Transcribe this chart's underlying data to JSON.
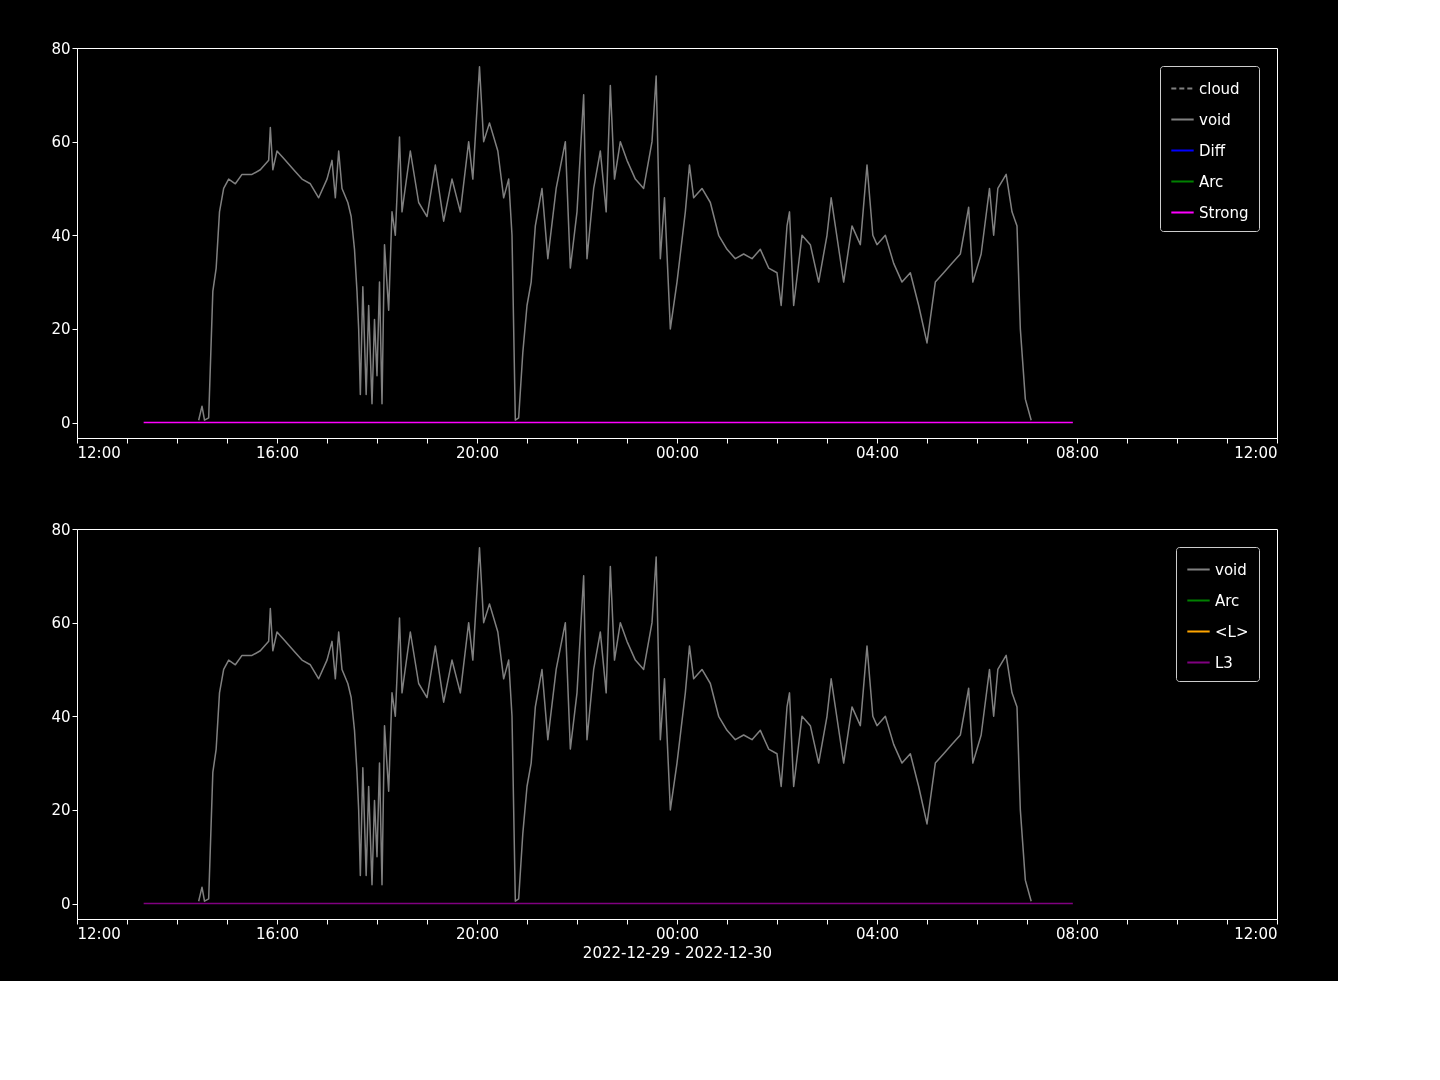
{
  "chart_data": [
    {
      "type": "line",
      "xlim": [
        "2022-12-29T12:00",
        "2022-12-30T12:00"
      ],
      "ylim": [
        -3.3,
        80
      ],
      "yticks": [
        0,
        20,
        40,
        60,
        80
      ],
      "xticks": [
        {
          "value": "2022-12-29T12:00",
          "label": "12:00"
        },
        {
          "value": "2022-12-29T13:00",
          "label": null
        },
        {
          "value": "2022-12-29T14:00",
          "label": null
        },
        {
          "value": "2022-12-29T15:00",
          "label": null
        },
        {
          "value": "2022-12-29T16:00",
          "label": "16:00"
        },
        {
          "value": "2022-12-29T17:00",
          "label": null
        },
        {
          "value": "2022-12-29T18:00",
          "label": null
        },
        {
          "value": "2022-12-29T19:00",
          "label": null
        },
        {
          "value": "2022-12-29T20:00",
          "label": "20:00"
        },
        {
          "value": "2022-12-29T21:00",
          "label": null
        },
        {
          "value": "2022-12-29T22:00",
          "label": null
        },
        {
          "value": "2022-12-29T23:00",
          "label": null
        },
        {
          "value": "2022-12-30T00:00",
          "label": "00:00"
        },
        {
          "value": "2022-12-30T01:00",
          "label": null
        },
        {
          "value": "2022-12-30T02:00",
          "label": null
        },
        {
          "value": "2022-12-30T03:00",
          "label": null
        },
        {
          "value": "2022-12-30T04:00",
          "label": "04:00"
        },
        {
          "value": "2022-12-30T05:00",
          "label": null
        },
        {
          "value": "2022-12-30T06:00",
          "label": null
        },
        {
          "value": "2022-12-30T07:00",
          "label": null
        },
        {
          "value": "2022-12-30T08:00",
          "label": "08:00"
        },
        {
          "value": "2022-12-30T09:00",
          "label": null
        },
        {
          "value": "2022-12-30T10:00",
          "label": null
        },
        {
          "value": "2022-12-30T11:00",
          "label": null
        },
        {
          "value": "2022-12-30T12:00",
          "label": "12:00"
        }
      ],
      "legend": "top right",
      "grid": false,
      "series": [
        {
          "name": "cloud",
          "color": "#808080",
          "line_style": "dashed"
        },
        {
          "name": "void",
          "color": "#808080",
          "line_style": "solid",
          "x": [
            "2022-12-29T14:26",
            "2022-12-29T14:30",
            "2022-12-29T14:33",
            "2022-12-29T14:38",
            "2022-12-29T14:43",
            "2022-12-29T14:47",
            "2022-12-29T14:51",
            "2022-12-29T14:56",
            "2022-12-29T15:02",
            "2022-12-29T15:10",
            "2022-12-29T15:18",
            "2022-12-29T15:30",
            "2022-12-29T15:40",
            "2022-12-29T15:50",
            "2022-12-29T15:52",
            "2022-12-29T15:55",
            "2022-12-29T16:00",
            "2022-12-29T16:10",
            "2022-12-29T16:20",
            "2022-12-29T16:30",
            "2022-12-29T16:40",
            "2022-12-29T16:50",
            "2022-12-29T17:00",
            "2022-12-29T17:06",
            "2022-12-29T17:10",
            "2022-12-29T17:14",
            "2022-12-29T17:18",
            "2022-12-29T17:25",
            "2022-12-29T17:29",
            "2022-12-29T17:33",
            "2022-12-29T17:36",
            "2022-12-29T17:38",
            "2022-12-29T17:40",
            "2022-12-29T17:43",
            "2022-12-29T17:47",
            "2022-12-29T17:50",
            "2022-12-29T17:54",
            "2022-12-29T17:57",
            "2022-12-29T18:00",
            "2022-12-29T18:03",
            "2022-12-29T18:06",
            "2022-12-29T18:09",
            "2022-12-29T18:14",
            "2022-12-29T18:18",
            "2022-12-29T18:22",
            "2022-12-29T18:27",
            "2022-12-29T18:30",
            "2022-12-29T18:40",
            "2022-12-29T18:50",
            "2022-12-29T19:00",
            "2022-12-29T19:10",
            "2022-12-29T19:20",
            "2022-12-29T19:30",
            "2022-12-29T19:40",
            "2022-12-29T19:50",
            "2022-12-29T19:55",
            "2022-12-29T20:03",
            "2022-12-29T20:08",
            "2022-12-29T20:15",
            "2022-12-29T20:25",
            "2022-12-29T20:32",
            "2022-12-29T20:38",
            "2022-12-29T20:42",
            "2022-12-29T20:46",
            "2022-12-29T20:50",
            "2022-12-29T20:55",
            "2022-12-29T21:00",
            "2022-12-29T21:05",
            "2022-12-29T21:10",
            "2022-12-29T21:18",
            "2022-12-29T21:25",
            "2022-12-29T21:35",
            "2022-12-29T21:46",
            "2022-12-29T21:52",
            "2022-12-29T22:00",
            "2022-12-29T22:08",
            "2022-12-29T22:12",
            "2022-12-29T22:20",
            "2022-12-29T22:28",
            "2022-12-29T22:35",
            "2022-12-29T22:40",
            "2022-12-29T22:45",
            "2022-12-29T22:52",
            "2022-12-29T23:00",
            "2022-12-29T23:10",
            "2022-12-29T23:20",
            "2022-12-29T23:30",
            "2022-12-29T23:35",
            "2022-12-29T23:40",
            "2022-12-29T23:45",
            "2022-12-29T23:52",
            "2022-12-30T00:00",
            "2022-12-30T00:10",
            "2022-12-30T00:15",
            "2022-12-30T00:20",
            "2022-12-30T00:30",
            "2022-12-30T00:40",
            "2022-12-30T00:50",
            "2022-12-30T01:00",
            "2022-12-30T01:10",
            "2022-12-30T01:20",
            "2022-12-30T01:30",
            "2022-12-30T01:40",
            "2022-12-30T01:50",
            "2022-12-30T02:00",
            "2022-12-30T02:05",
            "2022-12-30T02:12",
            "2022-12-30T02:15",
            "2022-12-30T02:20",
            "2022-12-30T02:30",
            "2022-12-30T02:40",
            "2022-12-30T02:50",
            "2022-12-30T03:00",
            "2022-12-30T03:05",
            "2022-12-30T03:15",
            "2022-12-30T03:20",
            "2022-12-30T03:30",
            "2022-12-30T03:40",
            "2022-12-30T03:48",
            "2022-12-30T03:55",
            "2022-12-30T04:00",
            "2022-12-30T04:10",
            "2022-12-30T04:20",
            "2022-12-30T04:30",
            "2022-12-30T04:40",
            "2022-12-30T04:50",
            "2022-12-30T05:00",
            "2022-12-30T05:10",
            "2022-12-30T05:20",
            "2022-12-30T05:30",
            "2022-12-30T05:40",
            "2022-12-30T05:50",
            "2022-12-30T05:55",
            "2022-12-30T06:05",
            "2022-12-30T06:15",
            "2022-12-30T06:20",
            "2022-12-30T06:25",
            "2022-12-30T06:35",
            "2022-12-30T06:42",
            "2022-12-30T06:48",
            "2022-12-30T06:52",
            "2022-12-30T06:58",
            "2022-12-30T07:05"
          ],
          "values": [
            0.5,
            3.5,
            0.5,
            1,
            28,
            33,
            45,
            50,
            52,
            51,
            53,
            53,
            54,
            56,
            63,
            54,
            58,
            56,
            54,
            52,
            51,
            48,
            52,
            56,
            48,
            58,
            50,
            47,
            44,
            37,
            28,
            20,
            6,
            29,
            6,
            25,
            4,
            22,
            10,
            30,
            4,
            38,
            24,
            45,
            40,
            61,
            45,
            58,
            47,
            44,
            55,
            43,
            52,
            45,
            60,
            52,
            76,
            60,
            64,
            58,
            48,
            52,
            40,
            0.5,
            1,
            15,
            25,
            30,
            42,
            50,
            35,
            50,
            60,
            33,
            45,
            70,
            35,
            50,
            58,
            45,
            72,
            52,
            60,
            56,
            52,
            50,
            60,
            74,
            35,
            48,
            20,
            30,
            45,
            55,
            48,
            50,
            47,
            40,
            37,
            35,
            36,
            35,
            37,
            33,
            32,
            25,
            42,
            45,
            25,
            40,
            38,
            30,
            40,
            48,
            36,
            30,
            42,
            38,
            55,
            40,
            38,
            40,
            34,
            30,
            32,
            25,
            17,
            30,
            32,
            34,
            36,
            46,
            30,
            36,
            50,
            40,
            50,
            53,
            45,
            42,
            20,
            5,
            0.5
          ]
        },
        {
          "name": "Diff",
          "color": "#0000ff",
          "line_style": "solid"
        },
        {
          "name": "Arc",
          "color": "#008000",
          "line_style": "solid"
        },
        {
          "name": "Strong",
          "color": "#ff00ff",
          "line_style": "solid",
          "x": [
            "2022-12-29T13:20",
            "2022-12-30T07:55"
          ],
          "values": [
            0,
            0
          ]
        }
      ]
    },
    {
      "type": "line",
      "xlabel": "2022-12-29 - 2022-12-30",
      "xlim": [
        "2022-12-29T12:00",
        "2022-12-30T12:00"
      ],
      "ylim": [
        -3.3,
        80
      ],
      "yticks": [
        0,
        20,
        40,
        60,
        80
      ],
      "xticks": [
        {
          "value": "2022-12-29T12:00",
          "label": "12:00"
        },
        {
          "value": "2022-12-29T13:00",
          "label": null
        },
        {
          "value": "2022-12-29T14:00",
          "label": null
        },
        {
          "value": "2022-12-29T15:00",
          "label": null
        },
        {
          "value": "2022-12-29T16:00",
          "label": "16:00"
        },
        {
          "value": "2022-12-29T17:00",
          "label": null
        },
        {
          "value": "2022-12-29T18:00",
          "label": null
        },
        {
          "value": "2022-12-29T19:00",
          "label": null
        },
        {
          "value": "2022-12-29T20:00",
          "label": "20:00"
        },
        {
          "value": "2022-12-29T21:00",
          "label": null
        },
        {
          "value": "2022-12-29T22:00",
          "label": null
        },
        {
          "value": "2022-12-29T23:00",
          "label": null
        },
        {
          "value": "2022-12-30T00:00",
          "label": "00:00"
        },
        {
          "value": "2022-12-30T01:00",
          "label": null
        },
        {
          "value": "2022-12-30T02:00",
          "label": null
        },
        {
          "value": "2022-12-30T03:00",
          "label": null
        },
        {
          "value": "2022-12-30T04:00",
          "label": "04:00"
        },
        {
          "value": "2022-12-30T05:00",
          "label": null
        },
        {
          "value": "2022-12-30T06:00",
          "label": null
        },
        {
          "value": "2022-12-30T07:00",
          "label": null
        },
        {
          "value": "2022-12-30T08:00",
          "label": "08:00"
        },
        {
          "value": "2022-12-30T09:00",
          "label": null
        },
        {
          "value": "2022-12-30T10:00",
          "label": null
        },
        {
          "value": "2022-12-30T11:00",
          "label": null
        },
        {
          "value": "2022-12-30T12:00",
          "label": "12:00"
        }
      ],
      "legend": "top right",
      "grid": false,
      "series": [
        {
          "name": "void",
          "color": "#808080",
          "line_style": "solid",
          "x": [
            "2022-12-29T14:26",
            "2022-12-29T14:30",
            "2022-12-29T14:33",
            "2022-12-29T14:38",
            "2022-12-29T14:43",
            "2022-12-29T14:47",
            "2022-12-29T14:51",
            "2022-12-29T14:56",
            "2022-12-29T15:02",
            "2022-12-29T15:10",
            "2022-12-29T15:18",
            "2022-12-29T15:30",
            "2022-12-29T15:40",
            "2022-12-29T15:50",
            "2022-12-29T15:52",
            "2022-12-29T15:55",
            "2022-12-29T16:00",
            "2022-12-29T16:10",
            "2022-12-29T16:20",
            "2022-12-29T16:30",
            "2022-12-29T16:40",
            "2022-12-29T16:50",
            "2022-12-29T17:00",
            "2022-12-29T17:06",
            "2022-12-29T17:10",
            "2022-12-29T17:14",
            "2022-12-29T17:18",
            "2022-12-29T17:25",
            "2022-12-29T17:29",
            "2022-12-29T17:33",
            "2022-12-29T17:36",
            "2022-12-29T17:38",
            "2022-12-29T17:40",
            "2022-12-29T17:43",
            "2022-12-29T17:47",
            "2022-12-29T17:50",
            "2022-12-29T17:54",
            "2022-12-29T17:57",
            "2022-12-29T18:00",
            "2022-12-29T18:03",
            "2022-12-29T18:06",
            "2022-12-29T18:09",
            "2022-12-29T18:14",
            "2022-12-29T18:18",
            "2022-12-29T18:22",
            "2022-12-29T18:27",
            "2022-12-29T18:30",
            "2022-12-29T18:40",
            "2022-12-29T18:50",
            "2022-12-29T19:00",
            "2022-12-29T19:10",
            "2022-12-29T19:20",
            "2022-12-29T19:30",
            "2022-12-29T19:40",
            "2022-12-29T19:50",
            "2022-12-29T19:55",
            "2022-12-29T20:03",
            "2022-12-29T20:08",
            "2022-12-29T20:15",
            "2022-12-29T20:25",
            "2022-12-29T20:32",
            "2022-12-29T20:38",
            "2022-12-29T20:42",
            "2022-12-29T20:46",
            "2022-12-29T20:50",
            "2022-12-29T20:55",
            "2022-12-29T21:00",
            "2022-12-29T21:05",
            "2022-12-29T21:10",
            "2022-12-29T21:18",
            "2022-12-29T21:25",
            "2022-12-29T21:35",
            "2022-12-29T21:46",
            "2022-12-29T21:52",
            "2022-12-29T22:00",
            "2022-12-29T22:08",
            "2022-12-29T22:12",
            "2022-12-29T22:20",
            "2022-12-29T22:28",
            "2022-12-29T22:35",
            "2022-12-29T22:40",
            "2022-12-29T22:45",
            "2022-12-29T22:52",
            "2022-12-29T23:00",
            "2022-12-29T23:10",
            "2022-12-29T23:20",
            "2022-12-29T23:30",
            "2022-12-29T23:35",
            "2022-12-29T23:40",
            "2022-12-29T23:45",
            "2022-12-29T23:52",
            "2022-12-30T00:00",
            "2022-12-30T00:10",
            "2022-12-30T00:15",
            "2022-12-30T00:20",
            "2022-12-30T00:30",
            "2022-12-30T00:40",
            "2022-12-30T00:50",
            "2022-12-30T01:00",
            "2022-12-30T01:10",
            "2022-12-30T01:20",
            "2022-12-30T01:30",
            "2022-12-30T01:40",
            "2022-12-30T01:50",
            "2022-12-30T02:00",
            "2022-12-30T02:05",
            "2022-12-30T02:12",
            "2022-12-30T02:15",
            "2022-12-30T02:20",
            "2022-12-30T02:30",
            "2022-12-30T02:40",
            "2022-12-30T02:50",
            "2022-12-30T03:00",
            "2022-12-30T03:05",
            "2022-12-30T03:15",
            "2022-12-30T03:20",
            "2022-12-30T03:30",
            "2022-12-30T03:40",
            "2022-12-30T03:48",
            "2022-12-30T03:55",
            "2022-12-30T04:00",
            "2022-12-30T04:10",
            "2022-12-30T04:20",
            "2022-12-30T04:30",
            "2022-12-30T04:40",
            "2022-12-30T04:50",
            "2022-12-30T05:00",
            "2022-12-30T05:10",
            "2022-12-30T05:20",
            "2022-12-30T05:30",
            "2022-12-30T05:40",
            "2022-12-30T05:50",
            "2022-12-30T05:55",
            "2022-12-30T06:05",
            "2022-12-30T06:15",
            "2022-12-30T06:20",
            "2022-12-30T06:25",
            "2022-12-30T06:35",
            "2022-12-30T06:42",
            "2022-12-30T06:48",
            "2022-12-30T06:52",
            "2022-12-30T06:58",
            "2022-12-30T07:05"
          ],
          "values": [
            0.5,
            3.5,
            0.5,
            1,
            28,
            33,
            45,
            50,
            52,
            51,
            53,
            53,
            54,
            56,
            63,
            54,
            58,
            56,
            54,
            52,
            51,
            48,
            52,
            56,
            48,
            58,
            50,
            47,
            44,
            37,
            28,
            20,
            6,
            29,
            6,
            25,
            4,
            22,
            10,
            30,
            4,
            38,
            24,
            45,
            40,
            61,
            45,
            58,
            47,
            44,
            55,
            43,
            52,
            45,
            60,
            52,
            76,
            60,
            64,
            58,
            48,
            52,
            40,
            0.5,
            1,
            15,
            25,
            30,
            42,
            50,
            35,
            50,
            60,
            33,
            45,
            70,
            35,
            50,
            58,
            45,
            72,
            52,
            60,
            56,
            52,
            50,
            60,
            74,
            35,
            48,
            20,
            30,
            45,
            55,
            48,
            50,
            47,
            40,
            37,
            35,
            36,
            35,
            37,
            33,
            32,
            25,
            42,
            45,
            25,
            40,
            38,
            30,
            40,
            48,
            36,
            30,
            42,
            38,
            55,
            40,
            38,
            40,
            34,
            30,
            32,
            25,
            17,
            30,
            32,
            34,
            36,
            46,
            30,
            36,
            50,
            40,
            50,
            53,
            45,
            42,
            20,
            5,
            0.5
          ]
        },
        {
          "name": "Arc",
          "color": "#008000",
          "line_style": "solid"
        },
        {
          "name": "<L>",
          "color": "#ffa500",
          "line_style": "solid"
        },
        {
          "name": "L3",
          "color": "#800080",
          "line_style": "solid",
          "x": [
            "2022-12-29T13:20",
            "2022-12-30T07:55"
          ],
          "values": [
            0,
            0
          ]
        }
      ]
    }
  ]
}
